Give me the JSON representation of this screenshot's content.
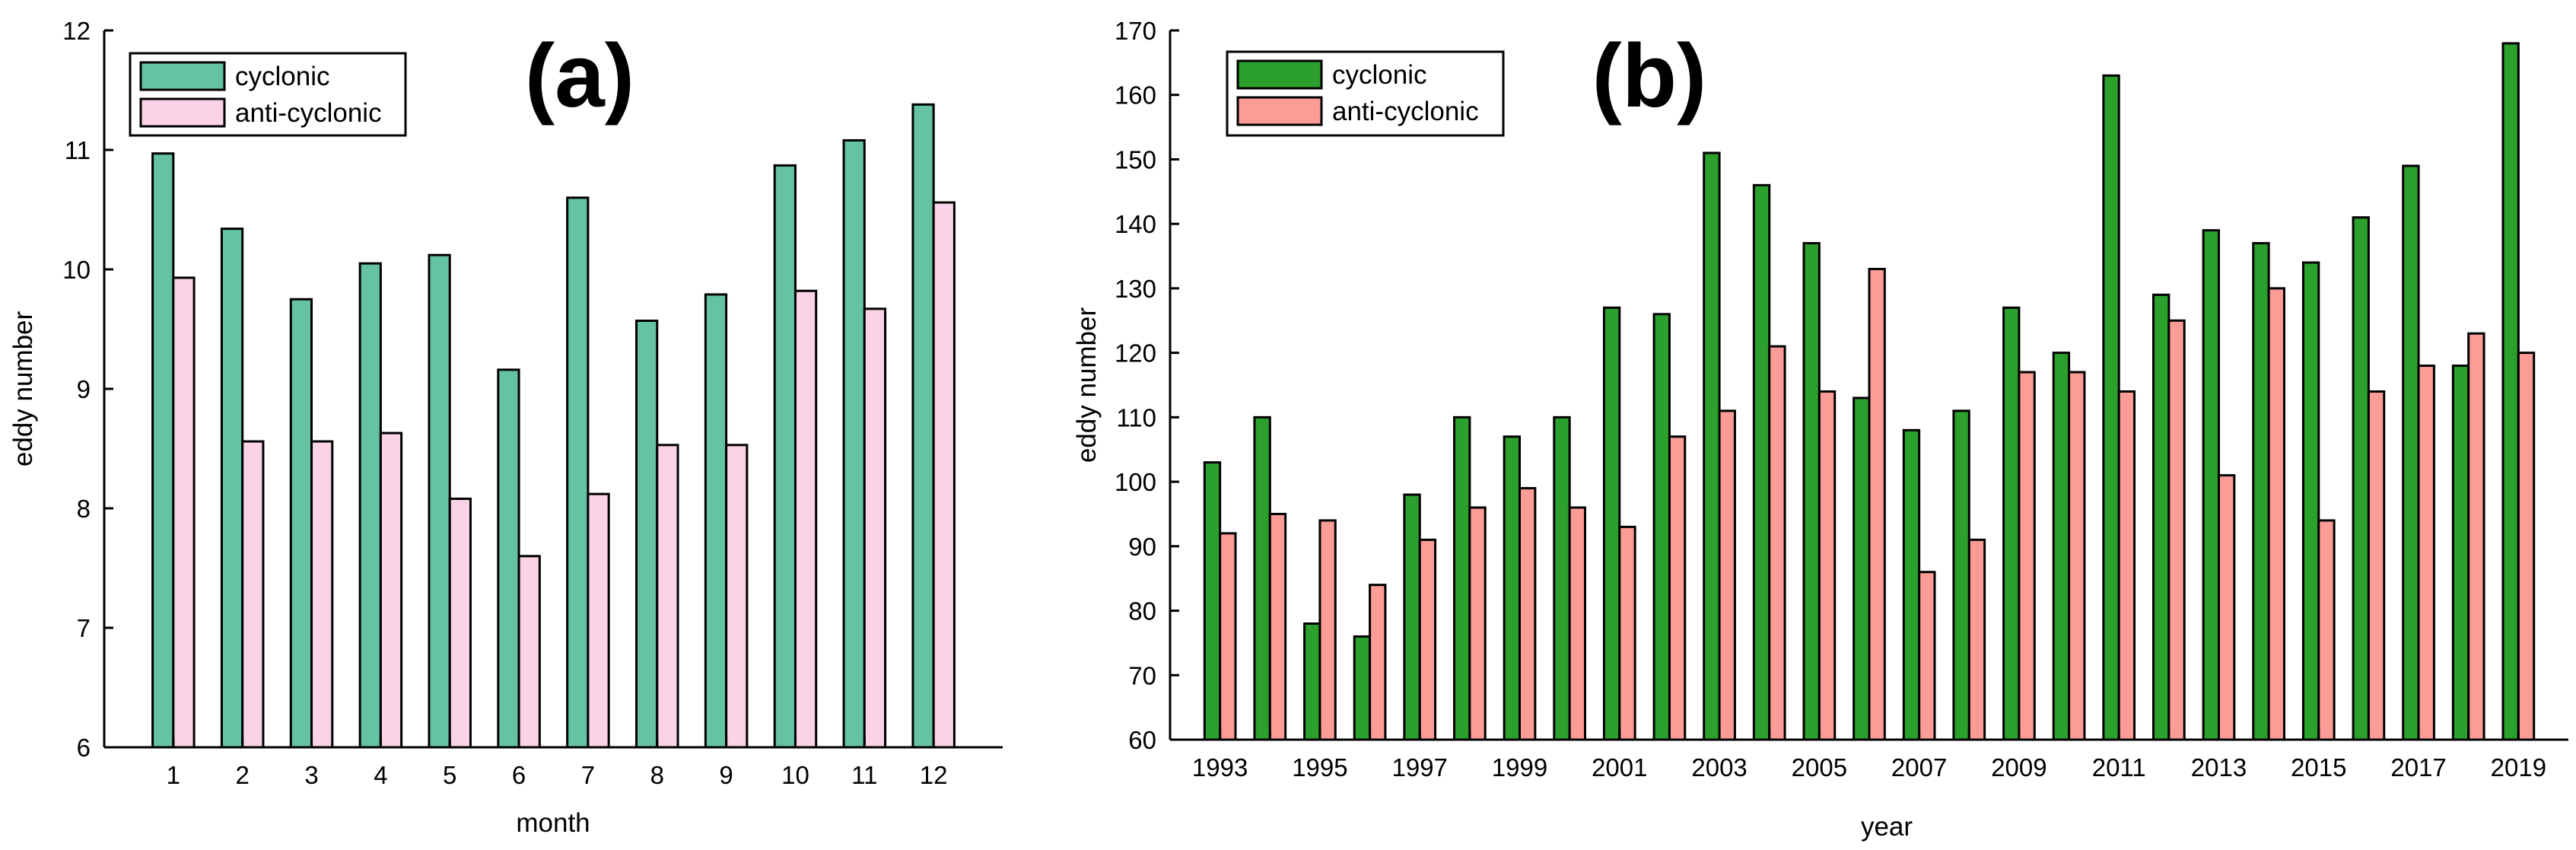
{
  "chart_data": [
    {
      "type": "bar",
      "panel_label": "(a)",
      "xlabel": "month",
      "ylabel": "eddy number",
      "categories": [
        "1",
        "2",
        "3",
        "4",
        "5",
        "6",
        "7",
        "8",
        "9",
        "10",
        "11",
        "12"
      ],
      "ylim": [
        6,
        12
      ],
      "yticks": [
        6,
        7,
        8,
        9,
        10,
        11,
        12
      ],
      "grid": false,
      "legend_position": "top-left",
      "series": [
        {
          "name": "cyclonic",
          "color": "#66c2a5",
          "values": [
            10.97,
            10.34,
            9.75,
            10.05,
            10.12,
            9.16,
            10.6,
            9.57,
            9.79,
            10.87,
            11.08,
            11.38
          ]
        },
        {
          "name": "anti-cyclonic",
          "color": "#fbd3e7",
          "values": [
            9.93,
            8.56,
            8.56,
            8.63,
            8.08,
            7.6,
            8.12,
            8.53,
            8.53,
            9.82,
            9.67,
            10.56
          ]
        }
      ]
    },
    {
      "type": "bar",
      "panel_label": "(b)",
      "xlabel": "year",
      "ylabel": "eddy number",
      "categories": [
        "1993",
        "1994",
        "1995",
        "1996",
        "1997",
        "1998",
        "1999",
        "2000",
        "2001",
        "2002",
        "2003",
        "2004",
        "2005",
        "2006",
        "2007",
        "2008",
        "2009",
        "2010",
        "2011",
        "2012",
        "2013",
        "2014",
        "2015",
        "2016",
        "2017",
        "2018",
        "2019"
      ],
      "tick_labels": [
        "1993",
        "",
        "1995",
        "",
        "1997",
        "",
        "1999",
        "",
        "2001",
        "",
        "2003",
        "",
        "2005",
        "",
        "2007",
        "",
        "2009",
        "",
        "2011",
        "",
        "2013",
        "",
        "2015",
        "",
        "2017",
        "",
        "2019"
      ],
      "ylim": [
        60,
        170
      ],
      "yticks": [
        60,
        70,
        80,
        90,
        100,
        110,
        120,
        130,
        140,
        150,
        160,
        170
      ],
      "grid": false,
      "legend_position": "top-left",
      "series": [
        {
          "name": "cyclonic",
          "color": "#2ca02c",
          "values": [
            103,
            110,
            78,
            76,
            98,
            110,
            107,
            110,
            127,
            126,
            151,
            146,
            137,
            113,
            108,
            111,
            127,
            120,
            163,
            129,
            139,
            137,
            134,
            141,
            149,
            118,
            168
          ]
        },
        {
          "name": "anti-cyclonic",
          "color": "#fc9c96",
          "values": [
            92,
            95,
            94,
            84,
            91,
            96,
            99,
            96,
            93,
            107,
            111,
            121,
            114,
            133,
            86,
            91,
            117,
            117,
            114,
            125,
            101,
            130,
            94,
            114,
            118,
            123,
            120
          ]
        }
      ]
    }
  ]
}
